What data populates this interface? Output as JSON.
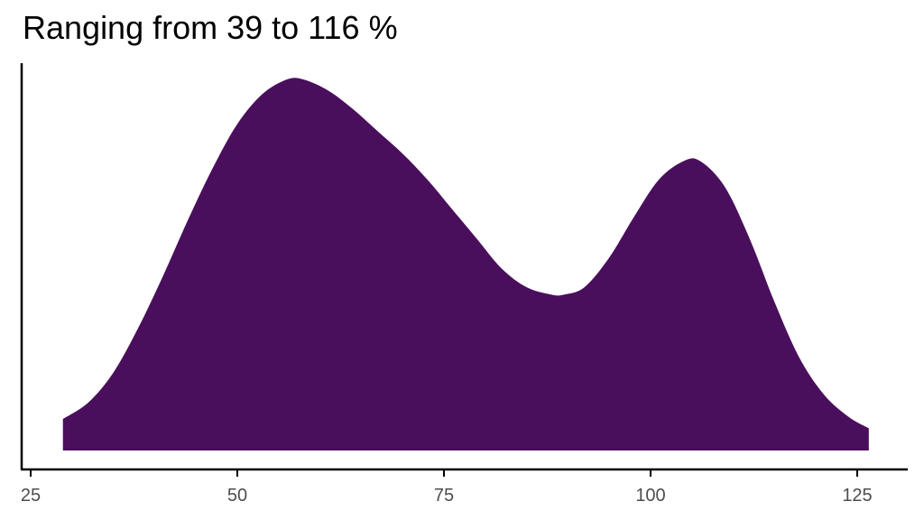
{
  "chart_data": {
    "type": "area",
    "title": "Ranging from 39 to 116 %",
    "xlabel": "",
    "ylabel": "",
    "xlim": [
      24,
      131
    ],
    "ylim": [
      0,
      1
    ],
    "grid": false,
    "legend": "none",
    "x_ticks": [
      25,
      50,
      75,
      100,
      125
    ],
    "x_tick_labels": [
      "25",
      "50",
      "75",
      "100",
      "125"
    ],
    "series": [
      {
        "color": "#4a0f5c",
        "x": [
          28.9,
          32,
          35,
          38,
          41,
          44,
          47,
          50,
          53,
          56,
          58,
          61,
          64,
          67,
          70,
          73,
          76,
          79,
          82,
          85,
          88,
          89.5,
          92,
          95,
          98,
          101,
          104,
          106,
          109,
          112,
          115,
          118,
          121,
          124,
          126.4
        ],
        "y": [
          0.085,
          0.13,
          0.21,
          0.33,
          0.47,
          0.62,
          0.76,
          0.88,
          0.96,
          1.0,
          1.0,
          0.97,
          0.92,
          0.86,
          0.8,
          0.73,
          0.65,
          0.57,
          0.49,
          0.44,
          0.42,
          0.42,
          0.44,
          0.52,
          0.63,
          0.73,
          0.78,
          0.78,
          0.71,
          0.57,
          0.4,
          0.25,
          0.15,
          0.09,
          0.06
        ]
      }
    ]
  }
}
